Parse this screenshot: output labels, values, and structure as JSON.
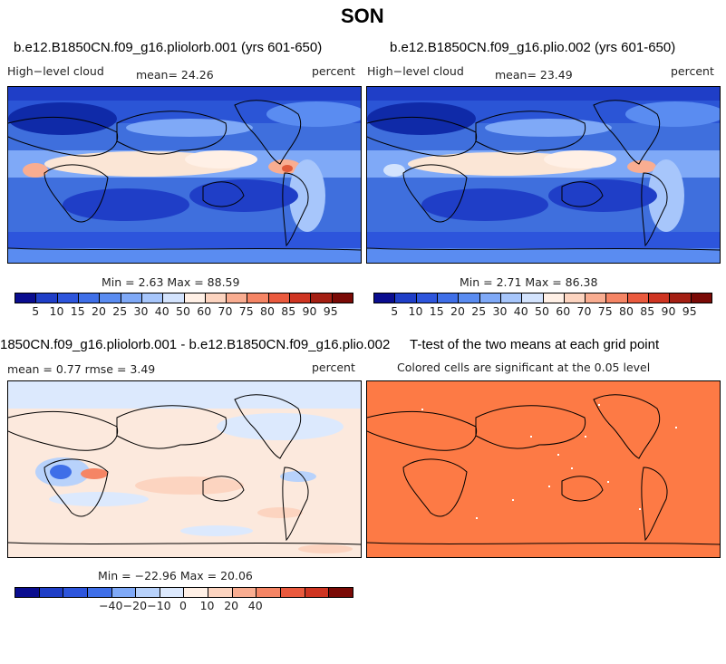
{
  "figure": {
    "season_title": "SON"
  },
  "panel1": {
    "title": "b.e12.B1850CN.f09_g16.pliolorb.001 (yrs 601-650)",
    "left_label": "High−level cloud",
    "mean_label": "mean=  24.26",
    "units": "percent",
    "minmax": "Min =   2.63 Max =  88.59",
    "colors": {
      "ocean": "#3f6fdd",
      "band": "#fbe6d6",
      "hot": "#e05a3a"
    }
  },
  "panel2": {
    "title": "b.e12.B1850CN.f09_g16.plio.002 (yrs 601-650)",
    "left_label": "High−level cloud",
    "mean_label": "mean=  23.49",
    "units": "percent",
    "minmax": "Min =   2.71 Max =  86.38"
  },
  "panel3": {
    "title": "1850CN.f09_g16.pliolorb.001 - b.e12.B1850CN.f09_g16.plio.002",
    "stats_label": "mean =   0.77    rmse =   3.49",
    "units": "percent",
    "minmax": "Min = −22.96 Max =  20.06",
    "colors": {
      "background": "#fce9dd",
      "neg": "#cfe0fb",
      "pos": "#f8b39a"
    }
  },
  "panel4": {
    "title": "T-test of the two means at each grid point",
    "subtitle": "Colored cells are significant at the 0.05 level",
    "colors": {
      "fill": "#fd7a45"
    }
  },
  "colorbar_abs": {
    "labels": [
      "5",
      "10",
      "15",
      "20",
      "25",
      "30",
      "40",
      "50",
      "60",
      "70",
      "75",
      "80",
      "85",
      "90",
      "95"
    ],
    "colors": [
      "#0a0d8f",
      "#1f3ec7",
      "#2d55dc",
      "#3f6fe8",
      "#5a8cf1",
      "#7fa9f7",
      "#a7c6fb",
      "#d3e3fd",
      "#fff0e6",
      "#fcd4c0",
      "#f9ad91",
      "#f58565",
      "#ea5a3e",
      "#cf3522",
      "#a41f13",
      "#7a0a06"
    ]
  },
  "colorbar_diff": {
    "labels": [
      "−40",
      "−20",
      "−10",
      "0",
      "10",
      "20",
      "40"
    ],
    "colors": [
      "#0a0d8f",
      "#1f3ec7",
      "#2d55dc",
      "#3f6fe8",
      "#7fa9f7",
      "#b8d2fb",
      "#dce9fd",
      "#fff0e6",
      "#fcd4c0",
      "#f9ad91",
      "#f58565",
      "#ea5a3e",
      "#cf3522",
      "#7a0a06"
    ]
  }
}
